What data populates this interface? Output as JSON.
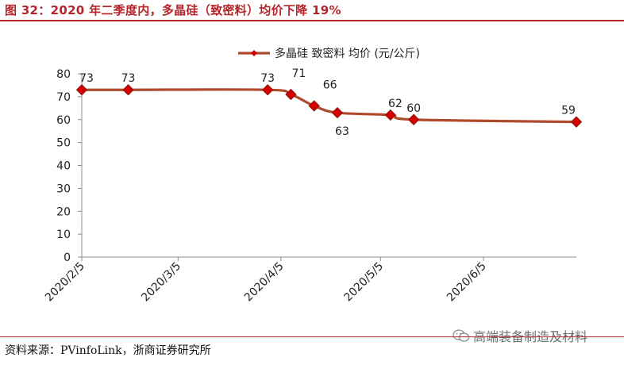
{
  "header": {
    "title": "图 32：2020 年二季度内，多晶硅（致密料）均价下降 19%"
  },
  "footer": {
    "source": "资料来源：PVinfoLink，浙商证券研究所"
  },
  "watermark": {
    "text": "高端装备制造及材料",
    "icon": "wechat-icon"
  },
  "colors": {
    "accent": "#b5262b",
    "line": "#b14a2c",
    "marker": "#d40000"
  },
  "chart_data": {
    "type": "line",
    "title": "",
    "xlabel": "",
    "ylabel": "",
    "ylim": [
      0,
      80
    ],
    "yticks": [
      0,
      10,
      20,
      30,
      40,
      50,
      60,
      70,
      80
    ],
    "xlim": [
      "2020-02-05",
      "2020-07-03"
    ],
    "xticks": [
      "2020/2/5",
      "2020/3/5",
      "2020/4/5",
      "2020/5/5",
      "2020/6/5"
    ],
    "xtick_dates": [
      "2020-02-05",
      "2020-03-05",
      "2020-04-05",
      "2020-05-05",
      "2020-06-05"
    ],
    "grid": false,
    "legend": "top-center",
    "series": [
      {
        "name": "多晶硅 致密料 均价 (元/公斤)",
        "x": [
          "2020-02-05",
          "2020-02-19",
          "2020-04-01",
          "2020-04-08",
          "2020-04-15",
          "2020-04-22",
          "2020-05-08",
          "2020-05-15",
          "2020-07-03"
        ],
        "y": [
          73,
          73,
          73,
          71,
          66,
          63,
          62,
          60,
          59
        ],
        "labels": [
          "73",
          "73",
          "73",
          "71",
          "66",
          "63",
          "62",
          "60",
          "59"
        ],
        "label_side": [
          "above",
          "above",
          "above",
          "above",
          "above",
          "below",
          "above",
          "above",
          "above"
        ]
      }
    ]
  }
}
